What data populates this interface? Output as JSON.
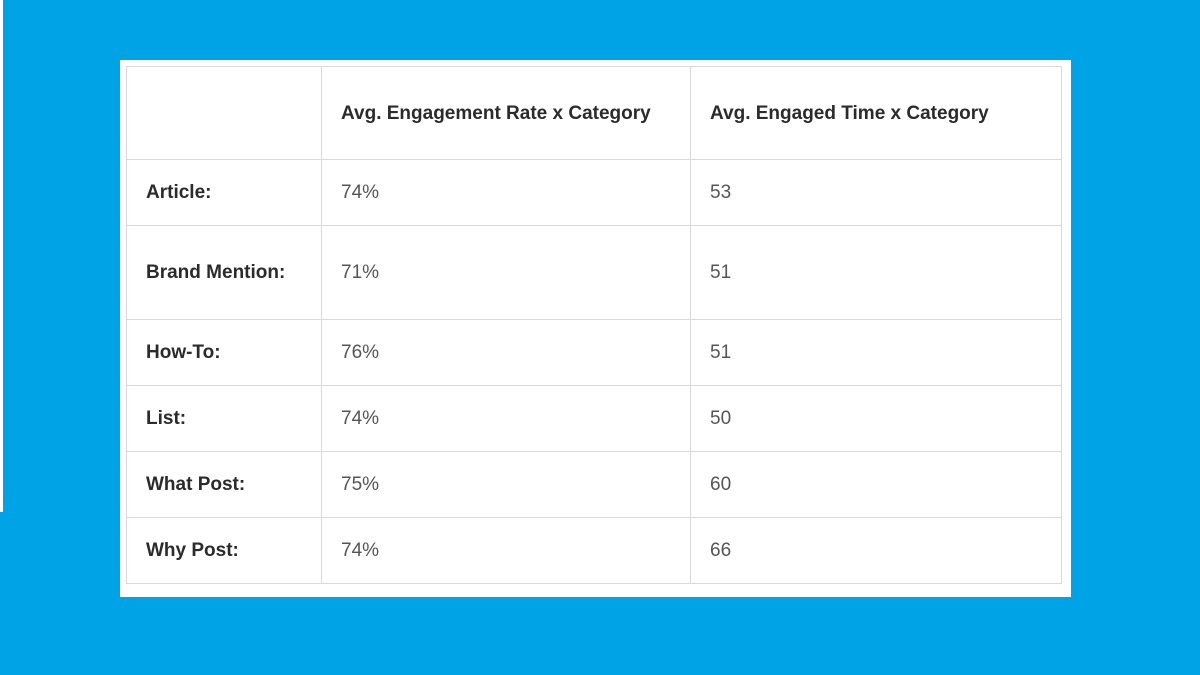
{
  "chart_data": {
    "type": "table",
    "columns": [
      "",
      "Avg. Engagement Rate x Category",
      "Avg. Engaged Time x Category"
    ],
    "rows": [
      {
        "category": "Article:",
        "engagement_rate": "74%",
        "engaged_time": "53"
      },
      {
        "category": "Brand Mention:",
        "engagement_rate": "71%",
        "engaged_time": "51"
      },
      {
        "category": "How-To:",
        "engagement_rate": "76%",
        "engaged_time": "51"
      },
      {
        "category": "List:",
        "engagement_rate": "74%",
        "engaged_time": "50"
      },
      {
        "category": "What Post:",
        "engagement_rate": "75%",
        "engaged_time": "60"
      },
      {
        "category": "Why Post:",
        "engagement_rate": "74%",
        "engaged_time": "66"
      }
    ]
  },
  "colors": {
    "background": "#00a3e6",
    "card": "#ffffff",
    "border": "#d9d9d9",
    "header_text": "#2b2b2b",
    "value_text": "#555555"
  }
}
